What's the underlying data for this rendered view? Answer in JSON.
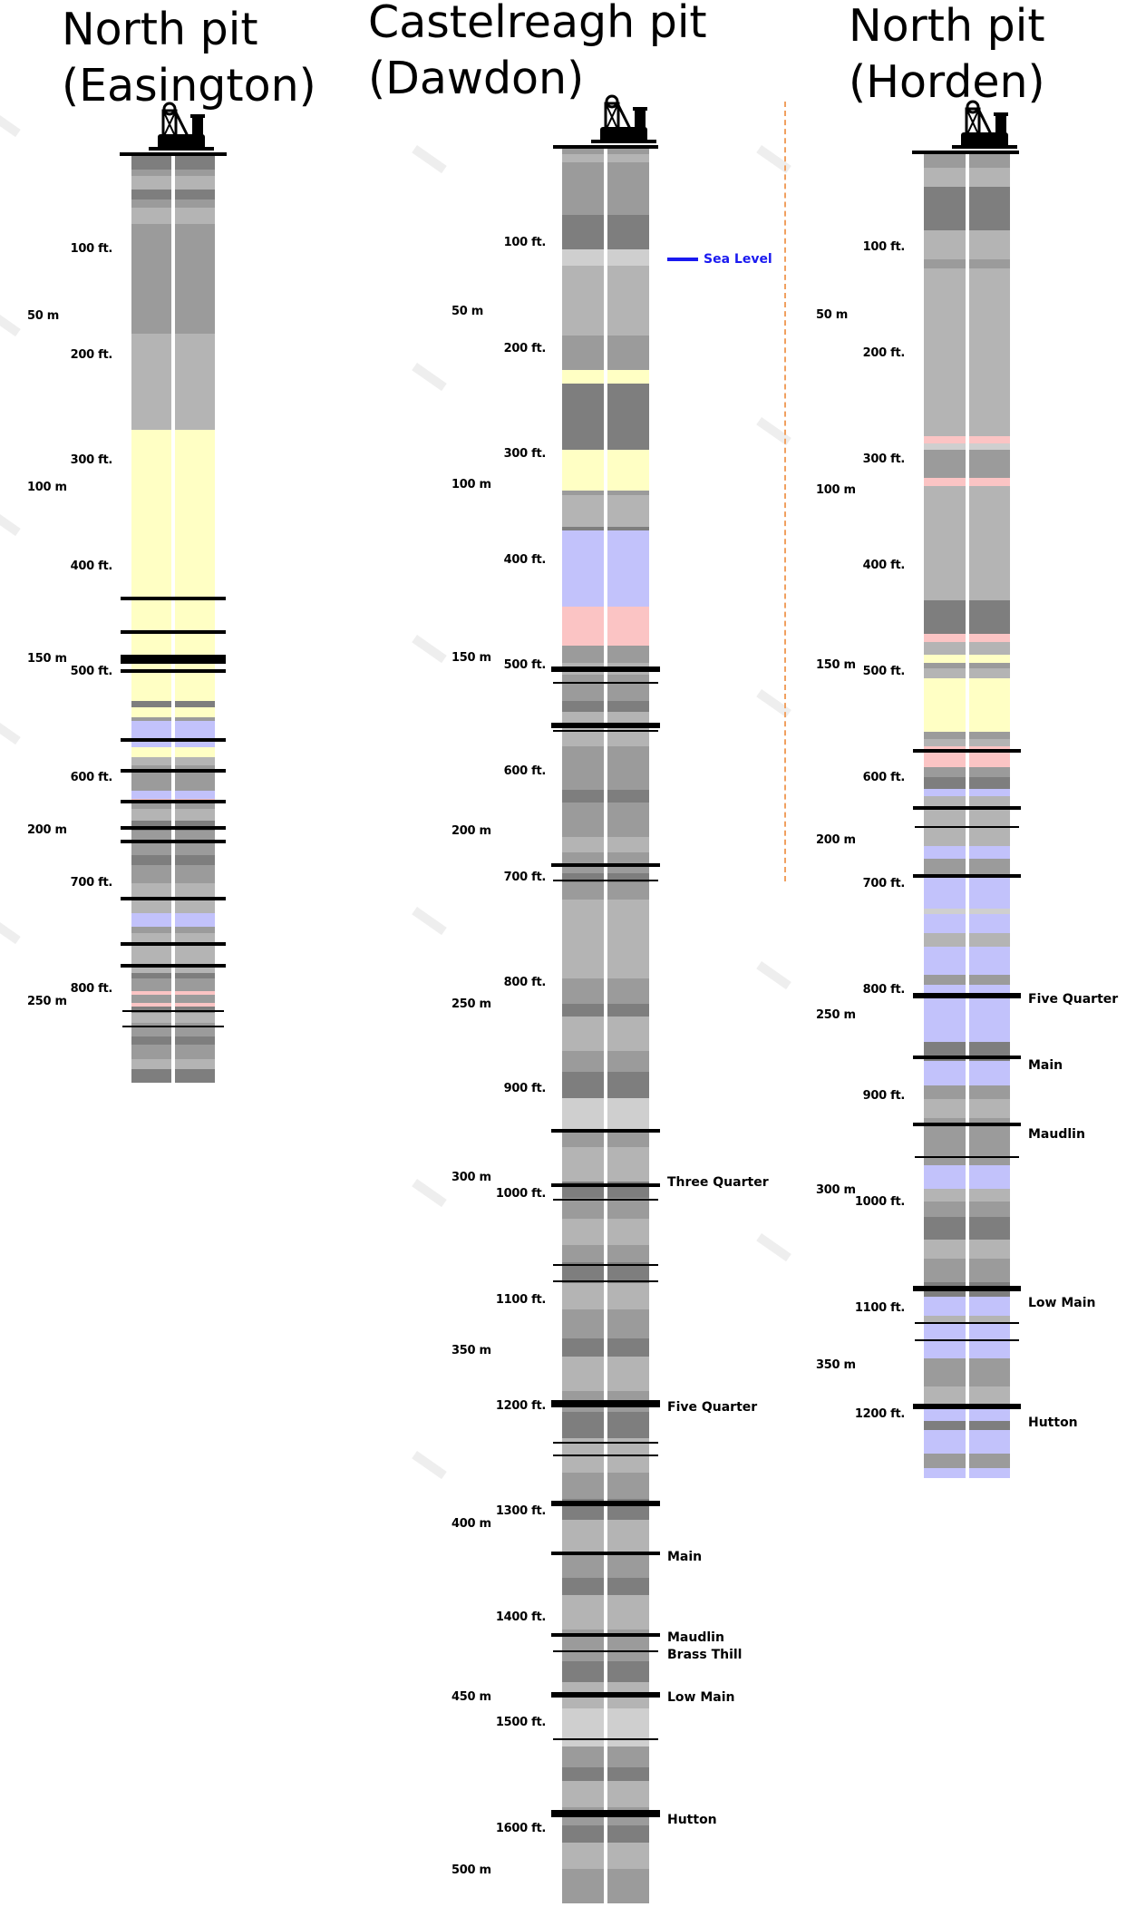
{
  "pits": [
    {
      "id": "easington",
      "title_line1": "North pit",
      "title_line2": "(Easington)",
      "feet_ticks": [
        "100 ft.",
        "200 ft.",
        "300 ft.",
        "400 ft.",
        "500 ft.",
        "600 ft.",
        "700 ft.",
        "800 ft."
      ],
      "metre_ticks": [
        "50 m",
        "100 m",
        "150 m",
        "200 m",
        "250 m"
      ],
      "seams": [],
      "strata": [
        [
          "g1",
          14
        ],
        [
          "g2",
          6
        ],
        [
          "g3",
          14
        ],
        [
          "g1",
          10
        ],
        [
          "g2",
          8
        ],
        [
          "g3",
          16
        ],
        [
          "g2",
          110
        ],
        [
          "g3",
          96
        ],
        [
          "y",
          230
        ],
        [
          "g4",
          4
        ],
        [
          "y",
          38
        ],
        [
          "g1",
          6
        ],
        [
          "y",
          10
        ],
        [
          "g2",
          4
        ],
        [
          "p",
          26
        ],
        [
          "y",
          10
        ],
        [
          "g3",
          8
        ],
        [
          "g2",
          26
        ],
        [
          "p",
          8
        ],
        [
          "r",
          4
        ],
        [
          "g2",
          6
        ],
        [
          "g3",
          12
        ],
        [
          "g1",
          10
        ],
        [
          "g2",
          24
        ],
        [
          "g1",
          10
        ],
        [
          "g2",
          18
        ],
        [
          "g3",
          30
        ],
        [
          "p",
          14
        ],
        [
          "g2",
          6
        ],
        [
          "g3",
          40
        ],
        [
          "g1",
          6
        ],
        [
          "g2",
          12
        ],
        [
          "r",
          4
        ],
        [
          "g2",
          8
        ],
        [
          "r",
          4
        ],
        [
          "g1",
          6
        ],
        [
          "g3",
          10
        ],
        [
          "g2",
          14
        ],
        [
          "g1",
          8
        ],
        [
          "g2",
          14
        ],
        [
          "g3",
          10
        ],
        [
          "g1",
          14
        ]
      ],
      "lines": [
        [
          658,
          4,
          false
        ],
        [
          695,
          4,
          false
        ],
        [
          722,
          10,
          false
        ],
        [
          738,
          4,
          false
        ],
        [
          814,
          4,
          false
        ],
        [
          848,
          4,
          false
        ],
        [
          882,
          4,
          false
        ],
        [
          911,
          4,
          false
        ],
        [
          926,
          4,
          false
        ],
        [
          989,
          4,
          false
        ],
        [
          1039,
          4,
          false
        ],
        [
          1063,
          4,
          false
        ],
        [
          1114,
          2,
          true
        ],
        [
          1131,
          2,
          true
        ]
      ]
    },
    {
      "id": "dawdon",
      "title_line1": "Castelreagh pit",
      "title_line2": "(Dawdon)",
      "feet_ticks": [
        "100 ft.",
        "200 ft.",
        "300 ft.",
        "400 ft.",
        "500 ft.",
        "600 ft.",
        "700 ft.",
        "800 ft.",
        "900 ft.",
        "1000 ft.",
        "1100 ft.",
        "1200 ft.",
        "1300 ft.",
        "1400 ft.",
        "1500 ft.",
        "1600 ft."
      ],
      "metre_ticks": [
        "50 m",
        "100 m",
        "150 m",
        "200 m",
        "250 m",
        "300 m",
        "350 m",
        "400 m",
        "450 m",
        "500 m"
      ],
      "sea_level": "Sea Level",
      "seams": [
        "Three Quarter",
        "Five Quarter",
        "Main",
        "Maudlin",
        "Brass Thill",
        "Low Main",
        "Hutton"
      ],
      "strata": [
        [
          "g2",
          6
        ],
        [
          "g3",
          10
        ],
        [
          "g2",
          60
        ],
        [
          "g1",
          40
        ],
        [
          "g4",
          18
        ],
        [
          "g3",
          80
        ],
        [
          "g2",
          40
        ],
        [
          "y",
          16
        ],
        [
          "g1",
          76
        ],
        [
          "y",
          46
        ],
        [
          "g2",
          6
        ],
        [
          "g3",
          36
        ],
        [
          "g1",
          4
        ],
        [
          "p",
          88
        ],
        [
          "r",
          44
        ],
        [
          "g2",
          20
        ],
        [
          "g3",
          14
        ],
        [
          "g2",
          30
        ],
        [
          "g1",
          12
        ],
        [
          "g3",
          40
        ],
        [
          "g2",
          50
        ],
        [
          "g1",
          14
        ],
        [
          "g2",
          40
        ],
        [
          "g3",
          18
        ],
        [
          "g2",
          24
        ],
        [
          "g1",
          10
        ],
        [
          "g2",
          20
        ],
        [
          "g3",
          90
        ],
        [
          "g2",
          30
        ],
        [
          "g1",
          14
        ],
        [
          "g3",
          40
        ],
        [
          "g2",
          24
        ],
        [
          "g1",
          30
        ],
        [
          "g4",
          36
        ],
        [
          "g2",
          20
        ],
        [
          "g3",
          40
        ],
        [
          "g1",
          18
        ],
        [
          "g2",
          24
        ],
        [
          "g3",
          30
        ],
        [
          "g2",
          20
        ],
        [
          "g1",
          24
        ],
        [
          "g3",
          30
        ],
        [
          "g2",
          34
        ],
        [
          "g1",
          20
        ],
        [
          "g3",
          40
        ],
        [
          "g2",
          24
        ],
        [
          "g1",
          30
        ],
        [
          "g3",
          40
        ],
        [
          "g2",
          30
        ],
        [
          "g1",
          24
        ],
        [
          "g3",
          36
        ],
        [
          "g2",
          30
        ],
        [
          "g1",
          20
        ],
        [
          "g3",
          40
        ],
        [
          "g2",
          36
        ],
        [
          "g1",
          24
        ],
        [
          "g3",
          30
        ],
        [
          "g4",
          44
        ],
        [
          "g2",
          24
        ],
        [
          "g1",
          16
        ],
        [
          "g3",
          30
        ],
        [
          "g2",
          20
        ],
        [
          "g1",
          20
        ],
        [
          "g3",
          30
        ],
        [
          "g2",
          40
        ]
      ],
      "lines": [
        [
          735,
          6,
          false
        ],
        [
          752,
          2,
          true
        ],
        [
          797,
          6,
          false
        ],
        [
          805,
          2,
          true
        ],
        [
          952,
          4,
          false
        ],
        [
          970,
          2,
          true
        ],
        [
          1245,
          4,
          false
        ],
        [
          1305,
          4,
          false
        ],
        [
          1322,
          2,
          true
        ],
        [
          1394,
          2,
          true
        ],
        [
          1412,
          2,
          true
        ],
        [
          1544,
          8,
          false
        ],
        [
          1590,
          2,
          true
        ],
        [
          1604,
          2,
          true
        ],
        [
          1655,
          6,
          false
        ],
        [
          1711,
          4,
          false
        ],
        [
          1801,
          4,
          false
        ],
        [
          1820,
          2,
          true
        ],
        [
          1866,
          6,
          false
        ],
        [
          1917,
          2,
          true
        ],
        [
          1996,
          8,
          false
        ]
      ]
    },
    {
      "id": "horden",
      "title_line1": "North pit",
      "title_line2": "(Horden)",
      "feet_ticks": [
        "100 ft.",
        "200 ft.",
        "300 ft.",
        "400 ft.",
        "500 ft.",
        "600 ft.",
        "700 ft.",
        "800 ft.",
        "900 ft.",
        "1000 ft.",
        "1100 ft.",
        "1200 ft."
      ],
      "metre_ticks": [
        "50 m",
        "100 m",
        "150 m",
        "200 m",
        "250 m",
        "300 m",
        "350 m"
      ],
      "seams": [
        "Five Quarter",
        "Main",
        "Maudlin",
        "Low Main",
        "Hutton"
      ],
      "strata": [
        [
          "g2",
          14
        ],
        [
          "g3",
          20
        ],
        [
          "g1",
          46
        ],
        [
          "g3",
          30
        ],
        [
          "g2",
          10
        ],
        [
          "g3",
          176
        ],
        [
          "r",
          8
        ],
        [
          "g4",
          6
        ],
        [
          "g2",
          30
        ],
        [
          "r",
          8
        ],
        [
          "g3",
          120
        ],
        [
          "g1",
          36
        ],
        [
          "r",
          8
        ],
        [
          "g3",
          14
        ],
        [
          "y",
          8
        ],
        [
          "g2",
          6
        ],
        [
          "g3",
          10
        ],
        [
          "y",
          56
        ],
        [
          "g2",
          8
        ],
        [
          "g3",
          8
        ],
        [
          "r",
          22
        ],
        [
          "g2",
          10
        ],
        [
          "g1",
          12
        ],
        [
          "p",
          8
        ],
        [
          "g3",
          52
        ],
        [
          "p",
          14
        ],
        [
          "g2",
          20
        ],
        [
          "p",
          32
        ],
        [
          "g4",
          6
        ],
        [
          "p",
          20
        ],
        [
          "g3",
          14
        ],
        [
          "p",
          30
        ],
        [
          "g2",
          10
        ],
        [
          "p",
          60
        ],
        [
          "g1",
          20
        ],
        [
          "p",
          26
        ],
        [
          "g2",
          14
        ],
        [
          "g3",
          20
        ],
        [
          "g2",
          50
        ],
        [
          "p",
          24
        ],
        [
          "g3",
          14
        ],
        [
          "g2",
          16
        ],
        [
          "g1",
          24
        ],
        [
          "g3",
          20
        ],
        [
          "g2",
          24
        ],
        [
          "g1",
          16
        ],
        [
          "p",
          20
        ],
        [
          "g3",
          8
        ],
        [
          "p",
          36
        ],
        [
          "g2",
          30
        ],
        [
          "g3",
          20
        ],
        [
          "p",
          16
        ],
        [
          "g1",
          10
        ],
        [
          "p",
          24
        ],
        [
          "g2",
          16
        ],
        [
          "p",
          10
        ]
      ],
      "lines": [
        [
          826,
          4,
          false
        ],
        [
          889,
          4,
          false
        ],
        [
          911,
          2,
          true
        ],
        [
          964,
          4,
          false
        ],
        [
          1095,
          6,
          false
        ],
        [
          1164,
          4,
          false
        ],
        [
          1238,
          4,
          false
        ],
        [
          1275,
          2,
          true
        ],
        [
          1418,
          6,
          false
        ],
        [
          1458,
          2,
          true
        ],
        [
          1477,
          2,
          true
        ],
        [
          1548,
          6,
          false
        ]
      ]
    }
  ]
}
